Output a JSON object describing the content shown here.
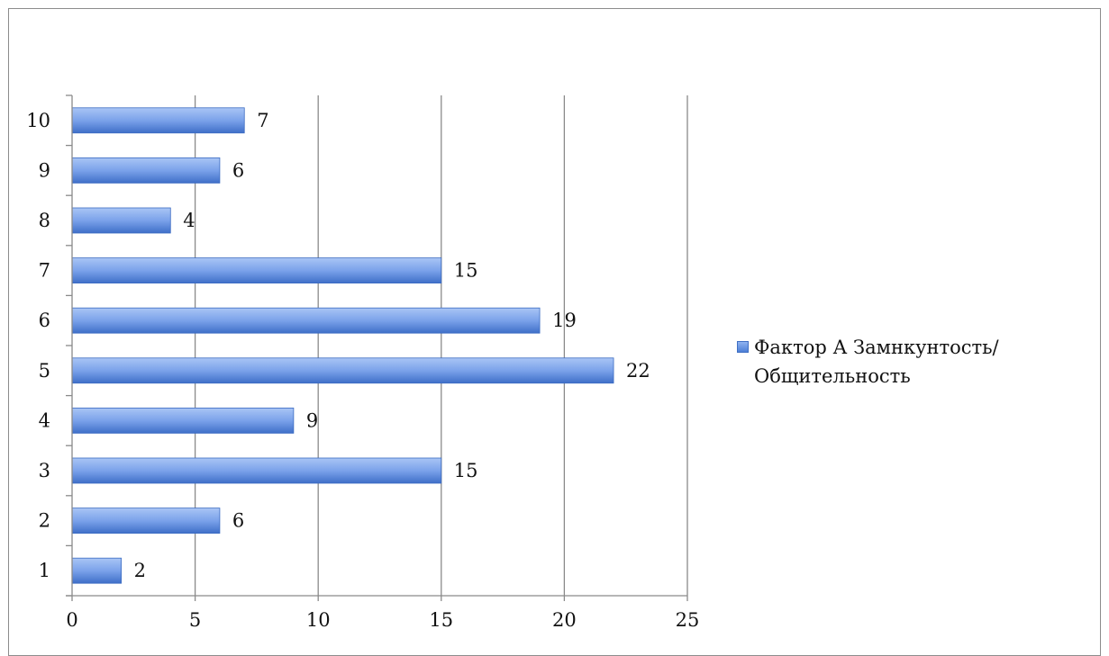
{
  "chart_data": {
    "type": "bar",
    "orientation": "horizontal",
    "categories": [
      "1",
      "2",
      "3",
      "4",
      "5",
      "6",
      "7",
      "8",
      "9",
      "10"
    ],
    "series": [
      {
        "name": "Фактор А Замнкунтость/Общительность",
        "values": [
          2,
          6,
          15,
          9,
          22,
          19,
          15,
          4,
          6,
          7
        ],
        "color": "#5b8be0"
      }
    ],
    "data_labels": [
      "2",
      "6",
      "15",
      "9",
      "22",
      "19",
      "15",
      "4",
      "6",
      "7"
    ],
    "x_ticks": [
      "0",
      "5",
      "10",
      "15",
      "20",
      "25"
    ],
    "xlim": [
      0,
      25
    ],
    "title": "",
    "xlabel": "",
    "ylabel": "",
    "grid": "vertical",
    "legend_position": "right"
  },
  "legend": {
    "label": "Фактор А Замнкунтость/Общительность"
  }
}
